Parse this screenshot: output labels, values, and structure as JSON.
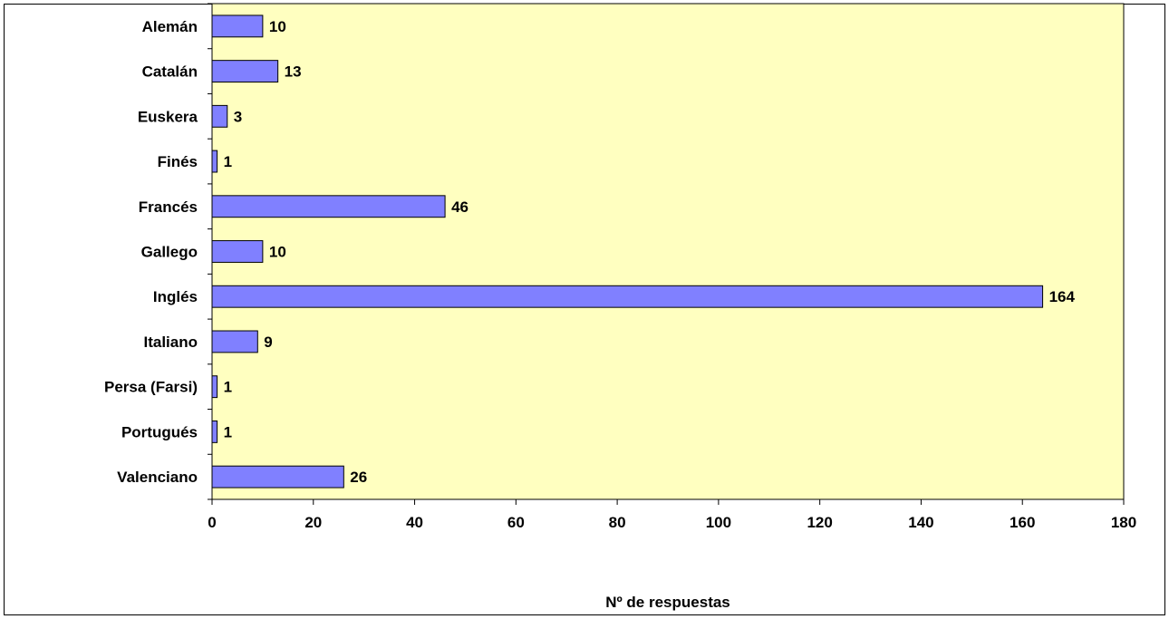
{
  "chart_data": {
    "type": "bar",
    "orientation": "horizontal",
    "categories": [
      "Alemán",
      "Catalán",
      "Euskera",
      "Finés",
      "Francés",
      "Gallego",
      "Inglés",
      "Italiano",
      "Persa (Farsi)",
      "Portugués",
      "Valenciano"
    ],
    "values": [
      10,
      13,
      3,
      1,
      46,
      10,
      164,
      9,
      1,
      1,
      26
    ],
    "data_labels": [
      "10",
      "13",
      "3",
      "1",
      "46",
      "10",
      "164",
      "9",
      "1",
      "1",
      "26"
    ],
    "xlabel": "Nº de respuestas",
    "ylabel": "",
    "xlim": [
      0,
      180
    ],
    "xticks": [
      "0",
      "20",
      "40",
      "60",
      "80",
      "100",
      "120",
      "140",
      "160",
      "180"
    ],
    "grid": false,
    "legend": "none",
    "colors": {
      "bar_fill": "#8080ff",
      "bar_stroke": "#000000",
      "plot_background": "#ffffc0",
      "page_background": "#ffffff"
    }
  }
}
